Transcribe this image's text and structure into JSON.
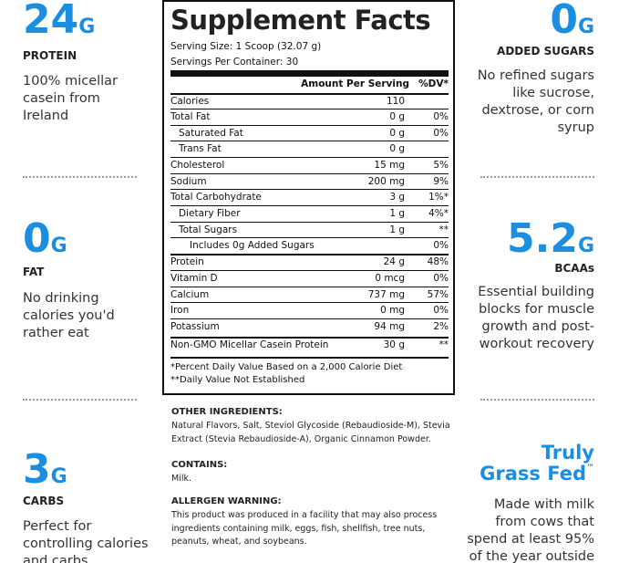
{
  "left": [
    {
      "big": "24",
      "unit": "G",
      "label": "PROTEIN",
      "text": [
        "100% micellar",
        "casein from",
        "Ireland"
      ]
    },
    {
      "big": "0",
      "unit": "G",
      "label": "FAT",
      "text": [
        "No drinking",
        "calories you'd",
        "rather eat"
      ]
    },
    {
      "big": "3",
      "unit": "G",
      "label": "CARBS",
      "text": [
        "Perfect for",
        "controlling calories",
        "and carbs"
      ]
    }
  ],
  "right": [
    {
      "big": "0",
      "unit": "G",
      "label": "ADDED SUGARS",
      "text": [
        "No refined sugars",
        "like sucrose,",
        "dextrose, or corn",
        "syrup"
      ]
    },
    {
      "big": "5.2",
      "unit": "G",
      "label": "BCAAs",
      "text": [
        "Essential building",
        "blocks for muscle",
        "growth and post-",
        "workout recovery"
      ]
    },
    {
      "big": "Truly",
      "big2": "Grass Fed",
      "tm": "™",
      "text": [
        "Made with milk",
        "from cows that",
        "spend at least 95%",
        "of the year outside"
      ]
    }
  ],
  "facts": {
    "title": "Supplement Facts",
    "serving_size": "Serving Size: 1 Scoop (32.07 g)",
    "servings": "Servings Per Container: 30",
    "header": [
      "Amount Per Serving",
      "%DV*"
    ],
    "rows": [
      {
        "name": "Calories",
        "amount": "110"
      },
      {
        "name": "Total Fat",
        "amount": "0 g",
        "dv": "0%"
      },
      {
        "name": "Saturated Fat",
        "amount": "0 g",
        "dv": "0%"
      },
      {
        "name": "Trans Fat",
        "amount": "0 g"
      },
      {
        "name": "Cholesterol",
        "amount": "15 mg",
        "dv": "5%"
      },
      {
        "name": "Sodium",
        "amount": "200 mg",
        "dv": "9%"
      },
      {
        "name": "Total Carbohydrate",
        "amount": "3 g",
        "dv": "1%*"
      },
      {
        "name": "Dietary Fiber",
        "amount": "1 g",
        "dv": "4%*"
      },
      {
        "name": "Total Sugars",
        "amount": "1 g",
        "dv": "**"
      },
      {
        "name": "Includes 0g Added Sugars",
        "dv": "0%"
      },
      {
        "name": "Protein",
        "amount": "24 g",
        "dv": "48%"
      },
      {
        "name": "Vitamin D",
        "amount": "0 mcg",
        "dv": "0%"
      },
      {
        "name": "Calcium",
        "amount": "737 mg",
        "dv": "57%"
      },
      {
        "name": "Iron",
        "amount": "0 mg",
        "dv": "0%"
      },
      {
        "name": "Potassium",
        "amount": "94 mg",
        "dv": "2%"
      },
      {
        "name": "Non-GMO Micellar Casein Protein",
        "amount": "30 g",
        "dv": "**"
      }
    ],
    "footnotes": [
      "*Percent Daily Value Based on a 2,000 Calorie Diet",
      "**Daily Value Not Established"
    ]
  },
  "info": [
    {
      "heading": "OTHER INGREDIENTS:",
      "text": [
        "Natural Flavors, Salt, Steviol Glycoside (Rebaudioside-M), Stevia",
        "Extract (Stevia Rebaudioside-A), Organic Cinnamon Powder."
      ]
    },
    {
      "heading": "CONTAINS:",
      "text": [
        "Milk."
      ]
    },
    {
      "heading": "ALLERGEN WARNING:",
      "text": [
        "This product was produced in a facility that may also process",
        "ingredients containing milk, eggs, fish, shellfish, tree nuts,",
        "peanuts, wheat, and soybeans."
      ]
    }
  ]
}
